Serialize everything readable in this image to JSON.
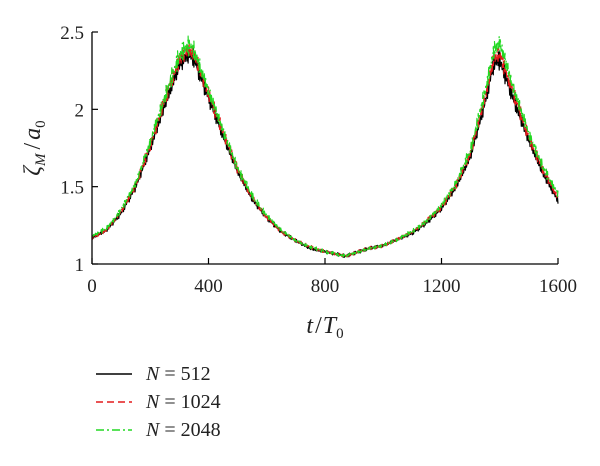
{
  "chart_data": {
    "type": "line",
    "xlabel": {
      "main": "t",
      "slash": "/",
      "sub_main": "T",
      "sub": "0"
    },
    "ylabel": {
      "main": "ζ",
      "sub1": "M",
      "slash": "/",
      "main2": "a",
      "sub2": "0"
    },
    "xlim": [
      0,
      1600
    ],
    "ylim": [
      1,
      2.5
    ],
    "xticks": [
      0,
      400,
      800,
      1200,
      1600
    ],
    "xtick_labels": [
      "0",
      "400",
      "800",
      "1200",
      "1600"
    ],
    "yticks": [
      1,
      1.5,
      2,
      2.5
    ],
    "ytick_labels": [
      "1",
      "1.5",
      "2",
      "2.5"
    ],
    "grid": false,
    "legend_position": "bottom-left, below plot",
    "series": [
      {
        "name": "N = 512",
        "name_var": "N",
        "name_eq": " = 512",
        "color": "#000000",
        "dash": "solid",
        "x": [
          0,
          50,
          100,
          150,
          200,
          250,
          300,
          330,
          350,
          400,
          450,
          500,
          550,
          600,
          650,
          700,
          750,
          800,
          850,
          870,
          900,
          950,
          1000,
          1050,
          1100,
          1150,
          1200,
          1250,
          1300,
          1350,
          1380,
          1400,
          1450,
          1500,
          1550,
          1600
        ],
        "y": [
          1.17,
          1.22,
          1.33,
          1.5,
          1.75,
          2.03,
          2.29,
          2.36,
          2.33,
          2.08,
          1.83,
          1.6,
          1.42,
          1.3,
          1.21,
          1.15,
          1.1,
          1.08,
          1.06,
          1.05,
          1.07,
          1.1,
          1.12,
          1.16,
          1.2,
          1.27,
          1.36,
          1.5,
          1.7,
          2.05,
          2.3,
          2.32,
          2.05,
          1.8,
          1.58,
          1.41
        ]
      },
      {
        "name": "N = 1024",
        "name_var": "N",
        "name_eq": " = 1024",
        "color": "#e41a1c",
        "dash": "dashed",
        "x": [
          0,
          50,
          100,
          150,
          200,
          250,
          300,
          330,
          350,
          400,
          450,
          500,
          550,
          600,
          650,
          700,
          750,
          800,
          850,
          870,
          900,
          950,
          1000,
          1050,
          1100,
          1150,
          1200,
          1250,
          1300,
          1350,
          1380,
          1400,
          1450,
          1500,
          1550,
          1600
        ],
        "y": [
          1.17,
          1.22,
          1.34,
          1.51,
          1.77,
          2.06,
          2.32,
          2.39,
          2.36,
          2.1,
          1.85,
          1.61,
          1.43,
          1.3,
          1.21,
          1.15,
          1.11,
          1.08,
          1.06,
          1.05,
          1.07,
          1.1,
          1.12,
          1.16,
          1.21,
          1.28,
          1.37,
          1.51,
          1.72,
          2.08,
          2.33,
          2.36,
          2.09,
          1.82,
          1.6,
          1.43
        ]
      },
      {
        "name": "N = 2048",
        "name_var": "N",
        "name_eq": " = 2048",
        "color": "#22d822",
        "dash": "dashdot",
        "x": [
          0,
          50,
          100,
          150,
          200,
          250,
          300,
          330,
          350,
          400,
          450,
          500,
          550,
          600,
          650,
          700,
          750,
          800,
          850,
          870,
          900,
          950,
          1000,
          1050,
          1100,
          1150,
          1200,
          1250,
          1300,
          1350,
          1380,
          1400,
          1450,
          1500,
          1550,
          1600
        ],
        "y": [
          1.18,
          1.23,
          1.35,
          1.52,
          1.79,
          2.08,
          2.35,
          2.41,
          2.38,
          2.12,
          1.86,
          1.62,
          1.44,
          1.31,
          1.22,
          1.15,
          1.11,
          1.08,
          1.06,
          1.05,
          1.07,
          1.1,
          1.12,
          1.16,
          1.21,
          1.28,
          1.38,
          1.52,
          1.74,
          2.12,
          2.38,
          2.43,
          2.12,
          1.84,
          1.62,
          1.45
        ]
      }
    ]
  }
}
